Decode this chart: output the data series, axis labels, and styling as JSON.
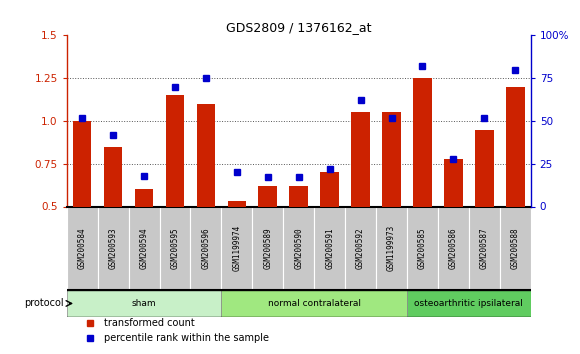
{
  "title": "GDS2809 / 1376162_at",
  "samples": [
    "GSM200584",
    "GSM200593",
    "GSM200594",
    "GSM200595",
    "GSM200596",
    "GSM1199974",
    "GSM200589",
    "GSM200590",
    "GSM200591",
    "GSM200592",
    "GSM1199973",
    "GSM200585",
    "GSM200586",
    "GSM200587",
    "GSM200588"
  ],
  "transformed_count": [
    1.0,
    0.85,
    0.6,
    1.15,
    1.1,
    0.53,
    0.62,
    0.62,
    0.7,
    1.05,
    1.05,
    1.25,
    0.78,
    0.95,
    1.2
  ],
  "percentile_rank": [
    52,
    42,
    18,
    70,
    75,
    20,
    17,
    17,
    22,
    62,
    52,
    82,
    28,
    52,
    80
  ],
  "bar_color": "#cc2200",
  "dot_color": "#0000cc",
  "ylim_left": [
    0.5,
    1.5
  ],
  "ylim_right": [
    0,
    100
  ],
  "yticks_left": [
    0.5,
    0.75,
    1.0,
    1.25,
    1.5
  ],
  "yticks_right": [
    0,
    25,
    50,
    75,
    100
  ],
  "ytick_labels_right": [
    "0",
    "25",
    "50",
    "75",
    "100%"
  ],
  "groups": [
    {
      "label": "sham",
      "start": 0,
      "end": 5,
      "color": "#c8f0c8"
    },
    {
      "label": "normal contralateral",
      "start": 5,
      "end": 11,
      "color": "#a0e880"
    },
    {
      "label": "osteoarthritic ipsilateral",
      "start": 11,
      "end": 15,
      "color": "#60cc60"
    }
  ],
  "protocol_label": "protocol",
  "legend_items": [
    {
      "label": "transformed count",
      "color": "#cc2200"
    },
    {
      "label": "percentile rank within the sample",
      "color": "#0000cc"
    }
  ],
  "grid_dotted_at": [
    0.75,
    1.0,
    1.25
  ],
  "grid_color": "#555555",
  "plot_bg": "#ffffff",
  "sample_box_color": "#c8c8c8",
  "bar_width": 0.6
}
